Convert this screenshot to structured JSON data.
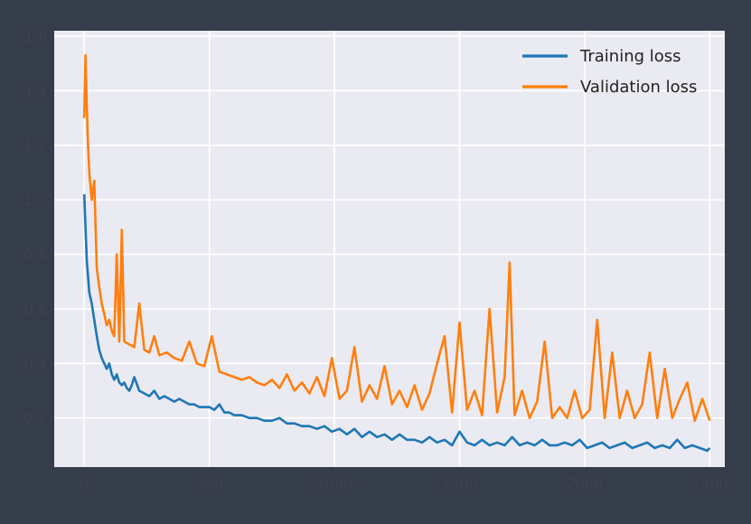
{
  "chart_data": {
    "type": "line",
    "title": "",
    "xlabel": "",
    "ylabel": "",
    "xlim": [
      -120,
      2560
    ],
    "ylim": [
      0.02,
      1.62
    ],
    "xticks": [
      0,
      500,
      1000,
      1500,
      2000,
      2500
    ],
    "yticks": [
      0.2,
      0.4,
      0.6,
      0.8,
      1.0,
      1.2,
      1.4,
      1.6
    ],
    "xtick_labels": [
      "0",
      "500",
      "1000",
      "1500",
      "2000",
      "2500"
    ],
    "ytick_labels": [
      "0.2",
      "0.4",
      "0.6",
      "0.8",
      "1.0",
      "1.2",
      "1.4",
      "1.6"
    ],
    "grid": true,
    "legend_position": "top-right",
    "background": "#eaeaf2",
    "series": [
      {
        "name": "Training loss",
        "color": "#1f77b4",
        "x": [
          0,
          10,
          20,
          30,
          40,
          50,
          60,
          70,
          80,
          90,
          100,
          110,
          120,
          130,
          140,
          150,
          160,
          170,
          180,
          190,
          200,
          220,
          240,
          260,
          280,
          300,
          320,
          340,
          360,
          380,
          400,
          420,
          440,
          460,
          480,
          500,
          520,
          540,
          560,
          580,
          600,
          630,
          660,
          690,
          720,
          750,
          780,
          810,
          840,
          870,
          900,
          930,
          960,
          990,
          1020,
          1050,
          1080,
          1110,
          1140,
          1170,
          1200,
          1230,
          1260,
          1290,
          1320,
          1350,
          1380,
          1410,
          1440,
          1470,
          1500,
          1530,
          1560,
          1590,
          1620,
          1650,
          1680,
          1710,
          1740,
          1770,
          1800,
          1830,
          1860,
          1890,
          1920,
          1950,
          1980,
          2010,
          2040,
          2070,
          2100,
          2130,
          2160,
          2190,
          2220,
          2250,
          2280,
          2310,
          2340,
          2370,
          2400,
          2430,
          2460,
          2490,
          2500
        ],
        "y": [
          1.02,
          0.78,
          0.66,
          0.62,
          0.56,
          0.5,
          0.45,
          0.42,
          0.4,
          0.38,
          0.4,
          0.36,
          0.34,
          0.36,
          0.33,
          0.32,
          0.33,
          0.31,
          0.3,
          0.32,
          0.35,
          0.3,
          0.29,
          0.28,
          0.3,
          0.27,
          0.28,
          0.27,
          0.26,
          0.27,
          0.26,
          0.25,
          0.25,
          0.24,
          0.24,
          0.24,
          0.23,
          0.25,
          0.22,
          0.22,
          0.21,
          0.21,
          0.2,
          0.2,
          0.19,
          0.19,
          0.2,
          0.18,
          0.18,
          0.17,
          0.17,
          0.16,
          0.17,
          0.15,
          0.16,
          0.14,
          0.16,
          0.13,
          0.15,
          0.13,
          0.14,
          0.12,
          0.14,
          0.12,
          0.12,
          0.11,
          0.13,
          0.11,
          0.12,
          0.1,
          0.15,
          0.11,
          0.1,
          0.12,
          0.1,
          0.11,
          0.1,
          0.13,
          0.1,
          0.11,
          0.1,
          0.12,
          0.1,
          0.1,
          0.11,
          0.1,
          0.12,
          0.09,
          0.1,
          0.11,
          0.09,
          0.1,
          0.11,
          0.09,
          0.1,
          0.11,
          0.09,
          0.1,
          0.09,
          0.12,
          0.09,
          0.1,
          0.09,
          0.08,
          0.09
        ]
      },
      {
        "name": "Validation loss",
        "color": "#ff7f0e",
        "x": [
          0,
          5,
          10,
          15,
          20,
          30,
          40,
          50,
          60,
          70,
          80,
          90,
          100,
          110,
          120,
          130,
          140,
          150,
          160,
          180,
          200,
          220,
          240,
          260,
          280,
          300,
          330,
          360,
          390,
          420,
          450,
          480,
          510,
          540,
          570,
          600,
          630,
          660,
          690,
          720,
          750,
          780,
          810,
          840,
          870,
          900,
          930,
          960,
          990,
          1020,
          1050,
          1080,
          1110,
          1140,
          1170,
          1200,
          1230,
          1260,
          1290,
          1320,
          1350,
          1380,
          1410,
          1440,
          1470,
          1500,
          1530,
          1560,
          1590,
          1620,
          1650,
          1680,
          1700,
          1720,
          1750,
          1780,
          1810,
          1840,
          1870,
          1900,
          1930,
          1960,
          1990,
          2020,
          2050,
          2080,
          2110,
          2140,
          2170,
          2200,
          2230,
          2260,
          2290,
          2320,
          2350,
          2380,
          2410,
          2440,
          2470,
          2500
        ],
        "y": [
          1.3,
          1.53,
          1.35,
          1.2,
          1.1,
          1.0,
          1.07,
          0.75,
          0.68,
          0.62,
          0.58,
          0.54,
          0.56,
          0.52,
          0.5,
          0.8,
          0.48,
          0.89,
          0.48,
          0.47,
          0.46,
          0.62,
          0.45,
          0.44,
          0.5,
          0.43,
          0.44,
          0.42,
          0.41,
          0.48,
          0.4,
          0.39,
          0.5,
          0.37,
          0.36,
          0.35,
          0.34,
          0.35,
          0.33,
          0.32,
          0.34,
          0.31,
          0.36,
          0.3,
          0.33,
          0.29,
          0.35,
          0.28,
          0.42,
          0.27,
          0.3,
          0.46,
          0.26,
          0.32,
          0.27,
          0.39,
          0.25,
          0.3,
          0.24,
          0.32,
          0.23,
          0.29,
          0.4,
          0.5,
          0.22,
          0.55,
          0.23,
          0.3,
          0.21,
          0.6,
          0.22,
          0.35,
          0.77,
          0.21,
          0.3,
          0.2,
          0.26,
          0.48,
          0.2,
          0.24,
          0.2,
          0.3,
          0.2,
          0.23,
          0.56,
          0.2,
          0.44,
          0.2,
          0.3,
          0.2,
          0.25,
          0.44,
          0.2,
          0.38,
          0.2,
          0.27,
          0.33,
          0.19,
          0.27,
          0.19
        ]
      }
    ]
  }
}
